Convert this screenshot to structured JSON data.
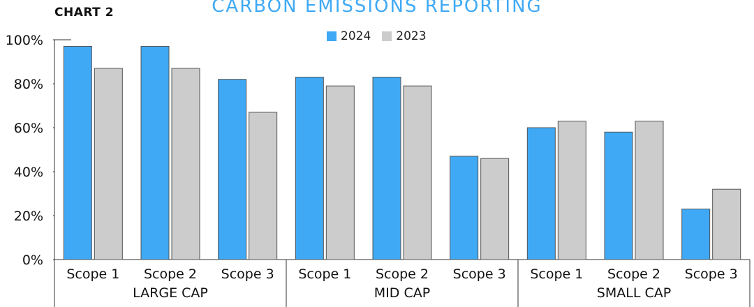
{
  "header": {
    "chart_label": "CHART 2"
  },
  "chart_data": {
    "type": "bar",
    "title": "CARBON EMISSIONS REPORTING",
    "ylim": [
      0,
      100
    ],
    "y_ticks": [
      "0%",
      "20%",
      "40%",
      "60%",
      "80%",
      "100%"
    ],
    "y_tick_values": [
      0,
      20,
      40,
      60,
      80,
      100
    ],
    "groups": [
      "LARGE CAP",
      "MID CAP",
      "SMALL CAP"
    ],
    "categories": [
      "Scope 1",
      "Scope 2",
      "Scope 3",
      "Scope 1",
      "Scope 2",
      "Scope 3",
      "Scope 1",
      "Scope 2",
      "Scope 3"
    ],
    "series": [
      {
        "name": "2024",
        "color": "#3fa9f5",
        "values": [
          97,
          97,
          82,
          83,
          83,
          47,
          60,
          58,
          23
        ]
      },
      {
        "name": "2023",
        "color": "#cccccc",
        "values": [
          87,
          87,
          67,
          79,
          79,
          46,
          63,
          63,
          32
        ]
      }
    ],
    "legend_position": "top-center",
    "grid": false
  }
}
